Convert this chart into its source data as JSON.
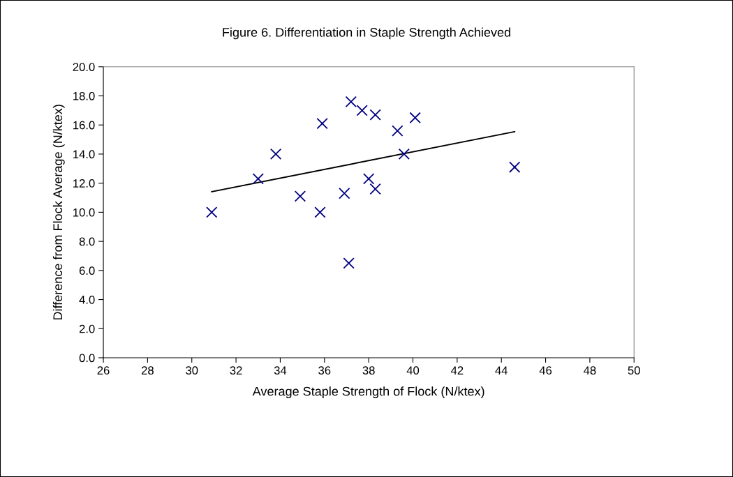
{
  "chart_data": {
    "type": "scatter",
    "title": "Figure 6. Differentiation in Staple Strength Achieved",
    "xlabel": "Average Staple Strength of Flock (N/ktex)",
    "ylabel": "Difference from Flock Average (N/ktex)",
    "x": [
      30.9,
      33.0,
      33.8,
      34.9,
      35.9,
      35.8,
      36.9,
      37.2,
      37.7,
      38.3,
      39.3,
      40.1,
      39.6,
      44.6,
      38.0,
      38.3,
      37.1
    ],
    "series": [
      {
        "color": "#000080",
        "marker": "cross",
        "values": [
          10.0,
          12.3,
          14.0,
          11.1,
          16.1,
          10.0,
          11.3,
          17.6,
          17.0,
          16.7,
          15.6,
          16.5,
          14.0,
          13.1,
          12.3,
          11.6,
          6.5
        ]
      },
      {
        "type": "line",
        "color": "#000000",
        "marker": "none",
        "line_style": "solid",
        "x": [
          30.9,
          44.6
        ],
        "values": [
          11.41,
          15.54
        ]
      }
    ],
    "xlim": [
      26,
      50
    ],
    "xticks": [
      26,
      28,
      30,
      32,
      34,
      36,
      38,
      40,
      42,
      44,
      46,
      48,
      50
    ],
    "ylim": [
      0,
      20
    ],
    "yticks": [
      {
        "value": 0,
        "label": "0.0"
      },
      {
        "value": 2,
        "label": "2.0"
      },
      {
        "value": 4,
        "label": "4.0"
      },
      {
        "value": 6,
        "label": "6.0"
      },
      {
        "value": 8,
        "label": "8.0"
      },
      {
        "value": 10,
        "label": "10.0"
      },
      {
        "value": 12,
        "label": "12.0"
      },
      {
        "value": 14,
        "label": "14.0"
      },
      {
        "value": 16,
        "label": "16.0"
      },
      {
        "value": 18,
        "label": "18.0"
      },
      {
        "value": 20,
        "label": "20.0"
      }
    ],
    "grid": false,
    "legend": false
  }
}
